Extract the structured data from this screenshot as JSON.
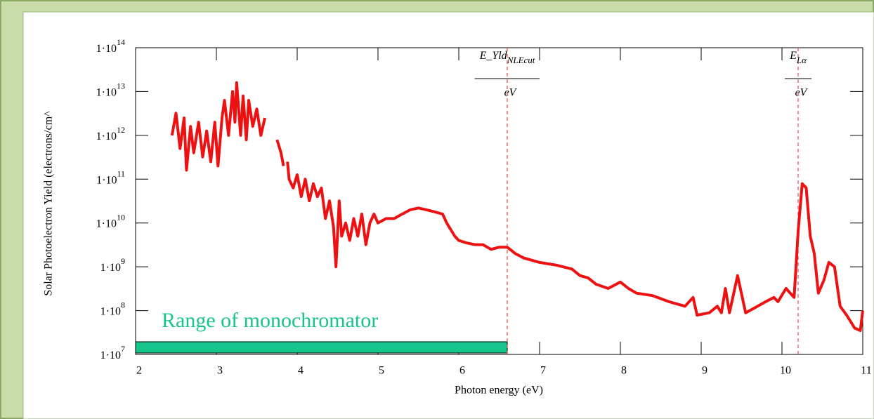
{
  "chart_data": {
    "type": "line",
    "xlabel": "Photon energy (eV)",
    "ylabel": "Solar Photoelectron Yield (electrons/cm^",
    "log_y": true,
    "xlim": [
      2,
      11
    ],
    "xticks": [
      2,
      3,
      4,
      5,
      6,
      7,
      8,
      9,
      10,
      11
    ],
    "ylim": [
      10000000.0,
      100000000000000.0
    ],
    "yticks": [
      {
        "value": 10000000.0,
        "label": "1·10",
        "exponent": "7"
      },
      {
        "value": 100000000.0,
        "label": "1·10",
        "exponent": "8"
      },
      {
        "value": 1000000000.0,
        "label": "1·10",
        "exponent": "9"
      },
      {
        "value": 10000000000.0,
        "label": "1·10",
        "exponent": "10"
      },
      {
        "value": 100000000000.0,
        "label": "1·10",
        "exponent": "11"
      },
      {
        "value": 1000000000000.0,
        "label": "1·10",
        "exponent": "12"
      },
      {
        "value": 10000000000000.0,
        "label": "1·10",
        "exponent": "13"
      },
      {
        "value": 100000000000000.0,
        "label": "1·10",
        "exponent": "14"
      }
    ],
    "series": [
      {
        "color": "#ee1111",
        "x": [
          2.45,
          2.5,
          2.55,
          2.6,
          2.63,
          2.68,
          2.72,
          2.78,
          2.83,
          2.88,
          2.93,
          2.98,
          3.02,
          3.07,
          3.1,
          3.15,
          3.2,
          3.23,
          3.25,
          3.3,
          3.33,
          3.37,
          3.4,
          3.45,
          3.5,
          3.55,
          3.6,
          3.68,
          3.75,
          3.8,
          3.83,
          3.86,
          3.88,
          3.9,
          3.95,
          4.0,
          4.05,
          4.1,
          4.15,
          4.2,
          4.25,
          4.3,
          4.35,
          4.4,
          4.45,
          4.48,
          4.52,
          4.55,
          4.6,
          4.65,
          4.7,
          4.75,
          4.8,
          4.85,
          4.9,
          4.95,
          5.0,
          5.1,
          5.2,
          5.3,
          5.4,
          5.5,
          5.6,
          5.7,
          5.8,
          5.85,
          5.95,
          6.0,
          6.1,
          6.2,
          6.3,
          6.4,
          6.5,
          6.6,
          6.7,
          6.8,
          7.0,
          7.2,
          7.4,
          7.5,
          7.6,
          7.7,
          7.85,
          8.0,
          8.1,
          8.2,
          8.4,
          8.6,
          8.8,
          8.9,
          8.95,
          9.1,
          9.2,
          9.25,
          9.3,
          9.35,
          9.45,
          9.55,
          9.7,
          9.8,
          9.9,
          9.95,
          10.05,
          10.15,
          10.2,
          10.25,
          10.3,
          10.35,
          10.4,
          10.45,
          10.52,
          10.58,
          10.65,
          10.72,
          10.8,
          10.9,
          10.97,
          11.0
        ],
        "values": [
          1000000000000.0,
          3200000000000.0,
          500000000000.0,
          2500000000000.0,
          160000000000.0,
          1600000000000.0,
          400000000000.0,
          2000000000000.0,
          320000000000.0,
          1260000000000.0,
          250000000000.0,
          2000000000000.0,
          200000000000.0,
          2500000000000.0,
          6300000000000.0,
          1000000000000.0,
          10000000000000.0,
          2000000000000.0,
          16000000000000.0,
          1000000000000.0,
          7900000000000.0,
          790000000000.0,
          6300000000000.0,
          1600000000000.0,
          4000000000000.0,
          1000000000000.0,
          2500000000000.0,
          null,
          790000000000.0,
          400000000000.0,
          200000000000.0,
          null,
          250000000000.0,
          100000000000.0,
          63000000000.0,
          126000000000.0,
          40000000000.0,
          100000000000.0,
          32000000000.0,
          79000000000.0,
          40000000000.0,
          63000000000.0,
          12600000000.0,
          32000000000.0,
          7900000000.0,
          1000000000.0,
          32000000000.0,
          5000000000.0,
          10000000000.0,
          4000000000.0,
          12600000000.0,
          5000000000.0,
          16000000000.0,
          3200000000.0,
          10000000000.0,
          16000000000.0,
          10000000000.0,
          12600000000.0,
          12600000000.0,
          16000000000.0,
          20000000000.0,
          22000000000.0,
          20000000000.0,
          18000000000.0,
          16000000000.0,
          10000000000.0,
          5000000000.0,
          4000000000.0,
          3500000000.0,
          3200000000.0,
          3200000000.0,
          2500000000.0,
          2800000000.0,
          2800000000.0,
          2000000000.0,
          1600000000.0,
          1260000000.0,
          1100000000.0,
          890000000.0,
          630000000.0,
          560000000.0,
          400000000.0,
          320000000.0,
          450000000.0,
          320000000.0,
          250000000.0,
          220000000.0,
          160000000.0,
          126000000.0,
          200000000.0,
          79000000.0,
          89000000.0,
          126000000.0,
          89000000.0,
          320000000.0,
          89000000.0,
          630000000.0,
          89000000.0,
          126000000.0,
          160000000.0,
          200000000.0,
          160000000.0,
          320000000.0,
          200000000.0,
          6300000000.0,
          79000000000.0,
          63000000000.0,
          5000000000.0,
          2000000000.0,
          250000000.0,
          500000000.0,
          1260000000.0,
          1000000000.0,
          126000000.0,
          79000000.0,
          40000000.0,
          35000000.0,
          100000000.0
        ]
      }
    ],
    "annotations": [
      {
        "x": 6.6,
        "text": "E_Yld",
        "sub": "NLEcut",
        "denominator": "eV",
        "color": "#ee4444"
      },
      {
        "x": 10.2,
        "text": "E",
        "sub": "Lα",
        "denominator": "eV",
        "color": "#ee4444"
      }
    ],
    "range": {
      "label": "Range of monochromator",
      "x": [
        2,
        6.6
      ],
      "color": "#17c48c"
    }
  }
}
